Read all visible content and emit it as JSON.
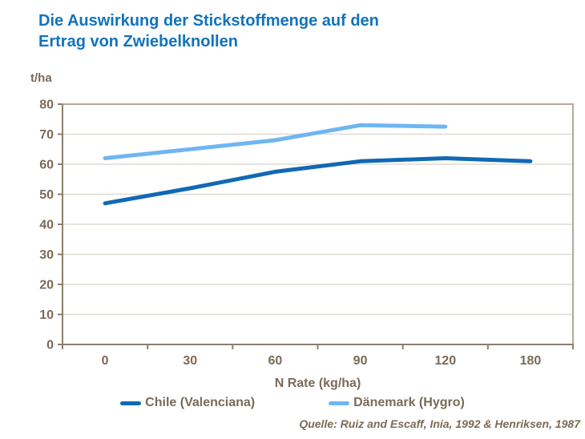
{
  "title": {
    "lines": [
      "Die Auswirkung der Stickstoffmenge auf den",
      "Ertrag von Zwiebelknollen"
    ],
    "color": "#1173bc"
  },
  "colors": {
    "text_brown": "#7a6a58",
    "axis_line": "#8c7e6d",
    "plot_border": "#b3aa9b",
    "gridline": "#e0dbd2"
  },
  "chart_data": {
    "type": "line",
    "title": "Die Auswirkung der Stickstoffmenge auf den Ertrag von Zwiebelknollen",
    "ylabel": "t/ha",
    "xlabel": "N Rate (kg/ha)",
    "categories": [
      "0",
      "30",
      "60",
      "90",
      "120",
      "180"
    ],
    "series": [
      {
        "name": "Chile (Valenciana)",
        "color": "#1169b4",
        "values": [
          47,
          52,
          57.5,
          61,
          62,
          61
        ]
      },
      {
        "name": "Dänemark (Hygro)",
        "color": "#6eb6f3",
        "values": [
          62,
          65,
          68,
          73,
          72.5,
          null
        ]
      }
    ],
    "ylim": [
      0,
      80
    ],
    "ytick_step": 10,
    "yticks": [
      0,
      10,
      20,
      30,
      40,
      50,
      60,
      70,
      80
    ],
    "grid": true,
    "legend_position": "bottom",
    "source": "Quelle: Ruiz and Escaff, Inia, 1992 & Henriksen, 1987"
  }
}
